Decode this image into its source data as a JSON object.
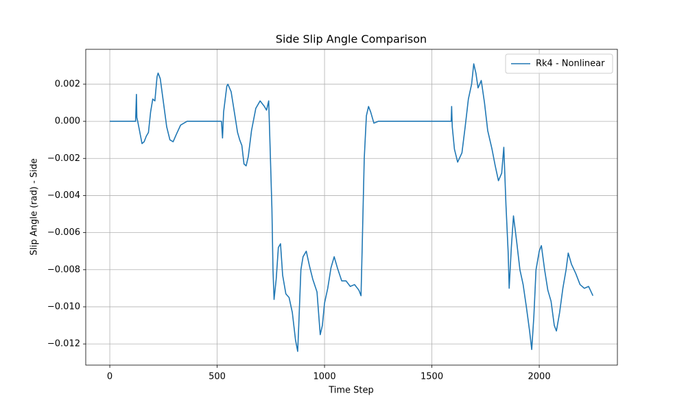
{
  "chart_data": {
    "type": "line",
    "title": "Side Slip Angle Comparison",
    "x_label": "Time Step",
    "y_label": "Slip Angle (rad) - Side",
    "grid": true,
    "legend": "upper right",
    "xlim": [
      -112,
      2364
    ],
    "ylim": [
      -0.01314,
      0.00388
    ],
    "xticks": [
      0,
      500,
      1000,
      1500,
      2000
    ],
    "yticks": [
      {
        "value": -0.012,
        "label": "−0.012"
      },
      {
        "value": -0.01,
        "label": "−0.010"
      },
      {
        "value": -0.008,
        "label": "−0.008"
      },
      {
        "value": -0.006,
        "label": "−0.006"
      },
      {
        "value": -0.004,
        "label": "−0.004"
      },
      {
        "value": -0.002,
        "label": "−0.002"
      },
      {
        "value": 0,
        "label": "0.000"
      },
      {
        "value": 0.002,
        "label": "0.002"
      }
    ],
    "x": [
      0,
      120,
      124,
      126,
      130,
      150,
      160,
      170,
      180,
      190,
      200,
      210,
      220,
      225,
      235,
      250,
      265,
      280,
      295,
      310,
      330,
      360,
      400,
      520,
      525,
      530,
      545,
      550,
      565,
      580,
      595,
      605,
      615,
      625,
      635,
      645,
      660,
      680,
      700,
      720,
      730,
      740,
      745,
      755,
      760,
      765,
      775,
      785,
      795,
      805,
      820,
      835,
      850,
      865,
      875,
      880,
      890,
      900,
      915,
      930,
      945,
      965,
      980,
      990,
      1000,
      1015,
      1030,
      1045,
      1060,
      1080,
      1100,
      1120,
      1140,
      1160,
      1170,
      1175,
      1185,
      1195,
      1205,
      1215,
      1230,
      1250,
      1590,
      1592,
      1595,
      1605,
      1620,
      1640,
      1655,
      1670,
      1685,
      1695,
      1705,
      1715,
      1730,
      1745,
      1760,
      1780,
      1795,
      1810,
      1825,
      1835,
      1845,
      1855,
      1860,
      1870,
      1880,
      1895,
      1910,
      1925,
      1940,
      1955,
      1965,
      1975,
      1985,
      2000,
      2010,
      2025,
      2040,
      2055,
      2070,
      2080,
      2095,
      2110,
      2125,
      2135,
      2150,
      2170,
      2190,
      2210,
      2230,
      2250
    ],
    "series": [
      {
        "name": "Rk4 - Nonlinear",
        "color": "#1f77b4",
        "values": [
          0,
          0,
          0.00145,
          0.0002,
          0,
          -0.0012,
          -0.0011,
          -0.0008,
          -0.0006,
          0.0005,
          0.0012,
          0.0011,
          0.0024,
          0.0026,
          0.0023,
          0.001,
          -0.0003,
          -0.001,
          -0.0011,
          -0.0007,
          -0.0002,
          0,
          0,
          0,
          -0.0009,
          0.0005,
          0.0019,
          0.002,
          0.0016,
          0.0005,
          -0.0006,
          -0.001,
          -0.0013,
          -0.0023,
          -0.0024,
          -0.0019,
          -0.0005,
          0.0007,
          0.0011,
          0.0008,
          0.0006,
          0.0011,
          -0.0008,
          -0.0047,
          -0.008,
          -0.0096,
          -0.0085,
          -0.0068,
          -0.0066,
          -0.0083,
          -0.0093,
          -0.0095,
          -0.0103,
          -0.0118,
          -0.0124,
          -0.011,
          -0.008,
          -0.0073,
          -0.007,
          -0.0078,
          -0.0085,
          -0.0092,
          -0.0115,
          -0.011,
          -0.0098,
          -0.009,
          -0.0079,
          -0.0073,
          -0.0079,
          -0.0086,
          -0.0086,
          -0.0089,
          -0.0088,
          -0.0091,
          -0.0094,
          -0.007,
          -0.002,
          0.0003,
          0.0008,
          0.0005,
          -0.0001,
          0,
          0,
          0.0008,
          -0.0003,
          -0.0015,
          -0.0022,
          -0.0017,
          -0.0003,
          0.0012,
          0.002,
          0.0031,
          0.0026,
          0.0018,
          0.0022,
          0.001,
          -0.0005,
          -0.0015,
          -0.0024,
          -0.0032,
          -0.0028,
          -0.0014,
          -0.0045,
          -0.007,
          -0.009,
          -0.0068,
          -0.0051,
          -0.0065,
          -0.008,
          -0.0088,
          -0.01,
          -0.0113,
          -0.0123,
          -0.0105,
          -0.008,
          -0.007,
          -0.0067,
          -0.008,
          -0.0091,
          -0.0097,
          -0.011,
          -0.0113,
          -0.0103,
          -0.009,
          -0.008,
          -0.0071,
          -0.0077,
          -0.0082,
          -0.0088,
          -0.009,
          -0.0089,
          -0.0094
        ]
      }
    ]
  }
}
